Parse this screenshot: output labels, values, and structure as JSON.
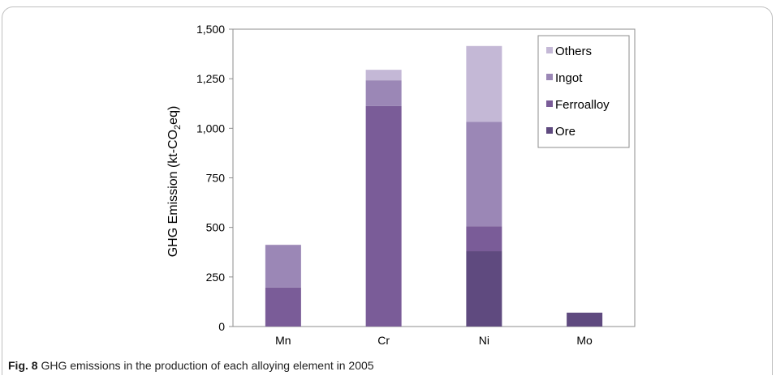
{
  "caption": {
    "label": "Fig. 8",
    "text": "GHG emissions in the production of each alloying element in 2005"
  },
  "chart_data": {
    "type": "bar",
    "stacked": true,
    "categories": [
      "Mn",
      "Cr",
      "Ni",
      "Mo"
    ],
    "series": [
      {
        "name": "Ore",
        "color": "#5f4a7f",
        "values": [
          0,
          0,
          380,
          70
        ]
      },
      {
        "name": "Ferroalloy",
        "color": "#7a5c98",
        "values": [
          197,
          1112,
          125,
          0
        ]
      },
      {
        "name": "Ingot",
        "color": "#9b87b6",
        "values": [
          215,
          130,
          527,
          0
        ]
      },
      {
        "name": "Others",
        "color": "#c4b8d6",
        "values": [
          0,
          53,
          383,
          0
        ]
      }
    ],
    "ylabel_prefix": "GHG Emission (kt-CO",
    "ylabel_sub": "2",
    "ylabel_suffix": "eq)",
    "ylim": [
      0,
      1500
    ],
    "yticks": [
      0,
      250,
      500,
      750,
      1000,
      1250,
      1500
    ],
    "ytick_labels": [
      "0",
      "250",
      "500",
      "750",
      "1,000",
      "1,250",
      "1,500"
    ],
    "legend_order": [
      "Others",
      "Ingot",
      "Ferroalloy",
      "Ore"
    ],
    "legend_position": "top-right",
    "grid": false
  }
}
